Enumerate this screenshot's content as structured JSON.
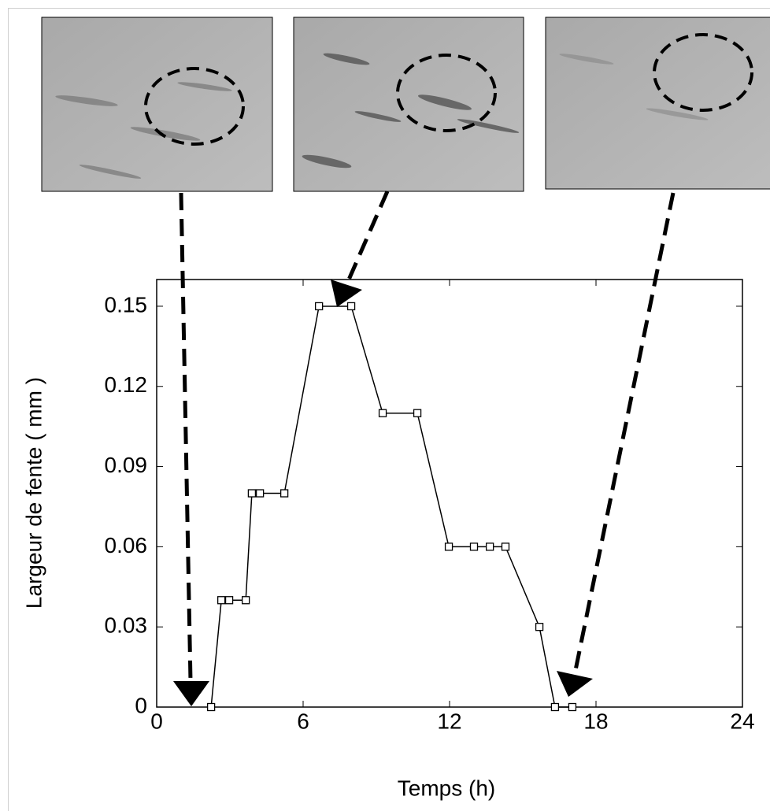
{
  "chart_data": {
    "type": "line",
    "xlabel": "Temps (h)",
    "ylabel": "Largeur de fente ( mm )",
    "x": [
      2.23,
      2.65,
      2.97,
      3.65,
      3.9,
      4.23,
      5.23,
      6.65,
      7.97,
      9.26,
      10.68,
      11.97,
      13.0,
      13.65,
      14.29,
      15.68,
      16.32,
      17.03
    ],
    "values": [
      0,
      0.04,
      0.04,
      0.04,
      0.08,
      0.08,
      0.08,
      0.15,
      0.15,
      0.11,
      0.11,
      0.06,
      0.06,
      0.06,
      0.06,
      0.03,
      0,
      0
    ],
    "color": "#000000",
    "xlim": [
      0,
      24
    ],
    "xticks": [
      0,
      6,
      12,
      18,
      24
    ],
    "ylim": [
      0,
      0.16
    ],
    "yticks": [
      0,
      0.03,
      0.06,
      0.09,
      0.12,
      0.15
    ]
  }
}
